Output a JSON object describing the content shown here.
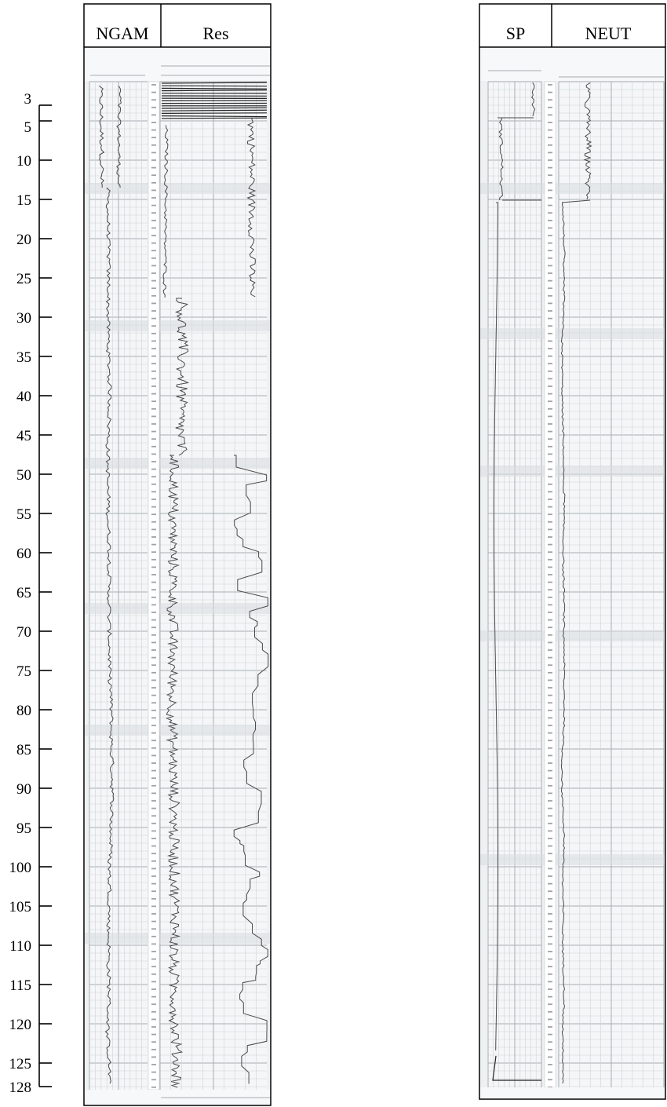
{
  "left_log": {
    "headers": [
      "NGAM",
      "Res"
    ]
  },
  "right_log": {
    "headers": [
      "SP",
      "NEUT"
    ]
  },
  "depth_scale": {
    "labels": [
      "3",
      "5",
      "10",
      "15",
      "20",
      "25",
      "30",
      "35",
      "40",
      "45",
      "50",
      "55",
      "60",
      "65",
      "70",
      "75",
      "80",
      "85",
      "90",
      "95",
      "100",
      "105",
      "110",
      "115",
      "120",
      "125",
      "128"
    ],
    "values": [
      3,
      5,
      10,
      15,
      20,
      25,
      30,
      35,
      40,
      45,
      50,
      55,
      60,
      65,
      70,
      75,
      80,
      85,
      90,
      95,
      100,
      105,
      110,
      115,
      120,
      125,
      128
    ]
  },
  "colors": {
    "grid_minor": "#cfd3d6",
    "grid_major": "#a9aeb3",
    "curve": "#4a4a4a",
    "paper": "#f4f6f7"
  }
}
